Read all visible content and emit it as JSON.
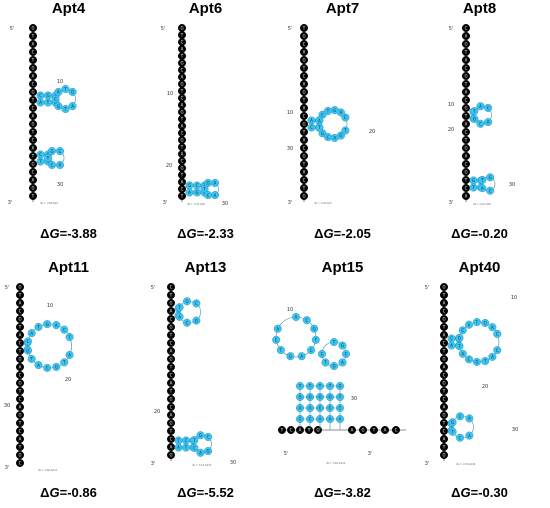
{
  "colors": {
    "stem_nucleotide": "#000000",
    "paired_nucleotide": "#3ec2ee",
    "background": "#ffffff"
  },
  "panels": [
    {
      "name": "Apt4",
      "delta_symbol": "Δ",
      "delta_g_letter": "G",
      "delta_g_value": "=-3.88",
      "index_labels": [
        "5'",
        "10",
        "30",
        "3'"
      ],
      "footer": "dG = -3.88 Apt4"
    },
    {
      "name": "Apt6",
      "delta_symbol": "Δ",
      "delta_g_letter": "G",
      "delta_g_value": "=-2.33",
      "index_labels": [
        "5'",
        "10",
        "20",
        "30",
        "3'"
      ],
      "footer": "dG = -2.33 Apt6"
    },
    {
      "name": "Apt7",
      "delta_symbol": "Δ",
      "delta_g_letter": "G",
      "delta_g_value": "=-2.05",
      "index_labels": [
        "5'",
        "10",
        "20",
        "30",
        "3'"
      ],
      "footer": "dG = -2.05 Apt7"
    },
    {
      "name": "Apt8",
      "delta_symbol": "Δ",
      "delta_g_letter": "G",
      "delta_g_value": "=-0.20",
      "index_labels": [
        "5'",
        "10",
        "20",
        "30",
        "3'"
      ],
      "footer": "dG = -0.20 Apt8"
    },
    {
      "name": "Apt11",
      "delta_symbol": "Δ",
      "delta_g_letter": "G",
      "delta_g_value": "=-0.86",
      "index_labels": [
        "5'",
        "10",
        "20",
        "30",
        "3'"
      ],
      "footer": "dG = -0.86 Apt11"
    },
    {
      "name": "Apt13",
      "delta_symbol": "Δ",
      "delta_g_letter": "G",
      "delta_g_value": "=-5.52",
      "index_labels": [
        "5'",
        "20",
        "30",
        "3'"
      ],
      "footer": "dG = -5.52 Apt13"
    },
    {
      "name": "Apt15",
      "delta_symbol": "Δ",
      "delta_g_letter": "G",
      "delta_g_value": "=-3.82",
      "index_labels": [
        "10",
        "30",
        "5'",
        "3'"
      ],
      "footer": "dG = -3.82 Apt15"
    },
    {
      "name": "Apt40",
      "delta_symbol": "Δ",
      "delta_g_letter": "G",
      "delta_g_value": "=-0.30",
      "index_labels": [
        "5'",
        "10",
        "20",
        "30",
        "3'"
      ],
      "footer": "dG = -0.30 Apt40"
    }
  ]
}
